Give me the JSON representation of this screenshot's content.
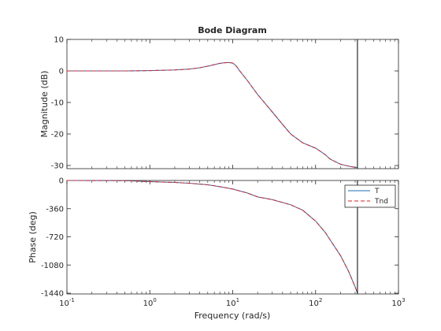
{
  "figure": {
    "title": "Bode Diagram",
    "xlabel": "Frequency  (rad/s)"
  },
  "chart_data": [
    {
      "type": "line",
      "panel": "magnitude",
      "title": "Bode Diagram",
      "xlabel": "Frequency  (rad/s)",
      "ylabel": "Magnitude (dB)",
      "xscale": "log",
      "xlim": [
        0.1,
        1000
      ],
      "ylim": [
        -31,
        10
      ],
      "xticks": [
        0.1,
        1,
        10,
        100,
        1000
      ],
      "yticks": [
        10,
        0,
        -10,
        -20,
        -30
      ],
      "ytick_labels": [
        "10",
        "0",
        "-10",
        "-20",
        "-30"
      ],
      "grid": false,
      "legend": "none",
      "vline_x": 320,
      "series": [
        {
          "name": "T",
          "color": "#1f6fb4",
          "style": "solid",
          "x": [
            0.1,
            0.5,
            1,
            2,
            3,
            4,
            5,
            6,
            7,
            8,
            9,
            10,
            11,
            12,
            15,
            20,
            30,
            40,
            50,
            70,
            100,
            130,
            150,
            200,
            250,
            300,
            320
          ],
          "y": [
            0,
            0,
            0.1,
            0.3,
            0.6,
            1.0,
            1.5,
            2.0,
            2.4,
            2.6,
            2.65,
            2.5,
            1.6,
            0.2,
            -3.0,
            -7.5,
            -13.0,
            -17.0,
            -20.0,
            -22.8,
            -24.5,
            -26.5,
            -28.0,
            -29.6,
            -30.2,
            -30.6,
            -30.6
          ]
        },
        {
          "name": "Tnd",
          "color": "#e41a1c",
          "style": "dashed",
          "x": [
            0.1,
            0.5,
            1,
            2,
            3,
            4,
            5,
            6,
            7,
            8,
            9,
            10,
            11,
            12,
            15,
            20,
            30,
            40,
            50,
            70,
            100,
            130,
            150,
            200,
            250,
            300,
            320
          ],
          "y": [
            0,
            0,
            0.1,
            0.3,
            0.6,
            1.0,
            1.5,
            2.0,
            2.4,
            2.6,
            2.65,
            2.5,
            1.6,
            0.2,
            -3.0,
            -7.5,
            -13.0,
            -17.0,
            -20.0,
            -22.8,
            -24.5,
            -26.5,
            -28.0,
            -29.6,
            -30.2,
            -30.6,
            -30.6
          ]
        }
      ]
    },
    {
      "type": "line",
      "panel": "phase",
      "xlabel": "Frequency  (rad/s)",
      "ylabel": "Phase (deg)",
      "xscale": "log",
      "xlim": [
        0.1,
        1000
      ],
      "ylim": [
        -1450,
        0
      ],
      "xticks": [
        0.1,
        1,
        10,
        100,
        1000
      ],
      "xtick_labels": [
        "10-1",
        "100",
        "101",
        "102",
        "103"
      ],
      "yticks": [
        0,
        -360,
        -720,
        -1080,
        -1440
      ],
      "ytick_labels": [
        "0",
        "-360",
        "-720",
        "-1080",
        "-1440"
      ],
      "grid": false,
      "legend": "top-right",
      "vline_x": 320,
      "series": [
        {
          "name": "T",
          "color": "#1f6fb4",
          "style": "solid",
          "x": [
            0.1,
            0.5,
            1,
            2,
            3,
            5,
            7,
            10,
            15,
            20,
            30,
            50,
            70,
            100,
            130,
            150,
            200,
            250,
            300,
            320
          ],
          "y": [
            0,
            -2,
            -15,
            -25,
            -35,
            -55,
            -80,
            -110,
            -160,
            -210,
            -245,
            -310,
            -380,
            -520,
            -660,
            -760,
            -960,
            -1160,
            -1360,
            -1440
          ]
        },
        {
          "name": "Tnd",
          "color": "#e41a1c",
          "style": "dashed",
          "x": [
            0.1,
            0.5,
            1,
            2,
            3,
            5,
            7,
            10,
            15,
            20,
            30,
            50,
            70,
            100,
            130,
            150,
            200,
            250,
            300,
            320
          ],
          "y": [
            0,
            -2,
            -15,
            -25,
            -35,
            -55,
            -80,
            -110,
            -160,
            -210,
            -245,
            -310,
            -380,
            -520,
            -660,
            -760,
            -960,
            -1160,
            -1360,
            -1440
          ]
        }
      ]
    }
  ]
}
